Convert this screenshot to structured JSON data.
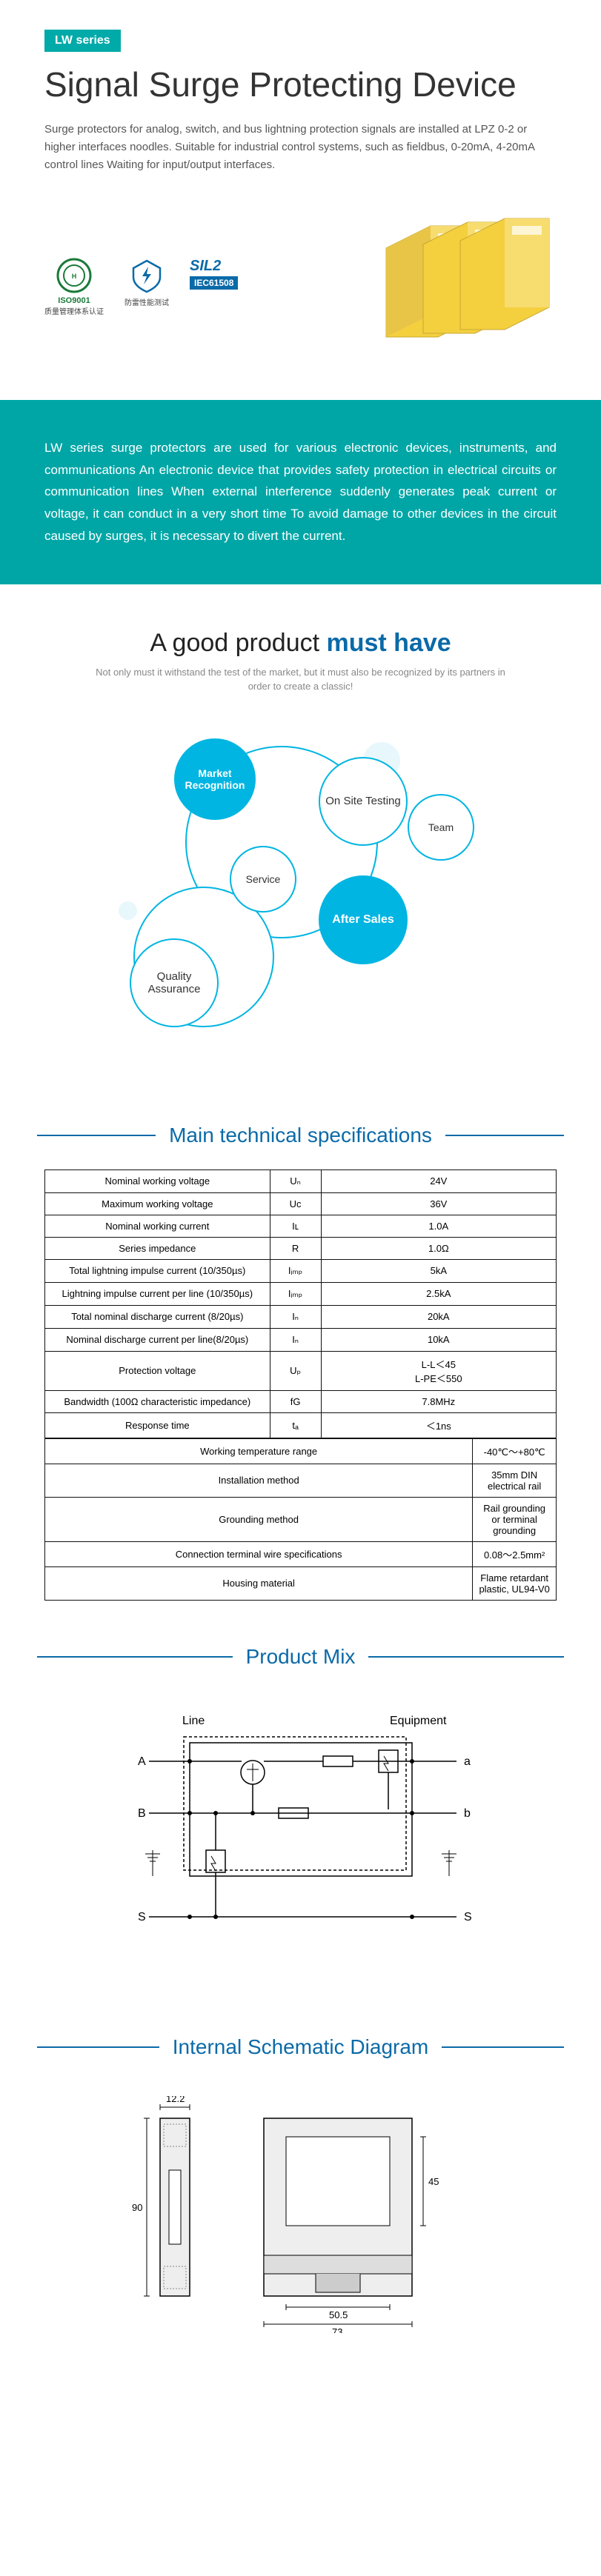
{
  "colors": {
    "teal": "#00a6a6",
    "blue": "#0b6aa8",
    "cyan": "#00b5e2",
    "lightCyan": "#e8f7fb",
    "yellow": "#f4d03f"
  },
  "hero": {
    "badge": "LW series",
    "title": "Signal Surge Protecting Device",
    "desc": "Surge protectors for analog, switch, and bus lightning protection signals are installed at LPZ 0-2 or higher interfaces noodles. Suitable for industrial control systems, such as fieldbus, 0-20mA, 4-20mA control lines Waiting for input/output interfaces.",
    "cert1": "质量管理体系认证",
    "cert1Top": "ISO9001",
    "cert2": "防雷性能测试",
    "silTop": "SIL2",
    "silBot": "IEC61508"
  },
  "tealBlock": "LW series surge protectors are used for various electronic devices, instruments, and communications An electronic device that provides safety protection in electrical circuits or communication lines When external interference suddenly generates peak current or voltage, it can conduct in a very short time To avoid damage to other devices in the circuit caused by surges, it is necessary to divert the current.",
  "good": {
    "titleA": "A good product ",
    "titleB": "must have",
    "sub": "Not only must it withstand the test of the market, but it must also be recognized by its partners in order to create a classic!",
    "bubbles": {
      "market": "Market Recognition",
      "onsite": "On Site Testing",
      "team": "Team",
      "service": "Service",
      "after": "After Sales",
      "quality": "Quality Assurance"
    }
  },
  "specsTitle": "Main technical specifications",
  "specs": [
    [
      "Nominal working voltage",
      "Uₙ",
      "24V"
    ],
    [
      "Maximum working voltage",
      "Uᴄ",
      "36V"
    ],
    [
      "Nominal working current",
      "Iʟ",
      "1.0A"
    ],
    [
      "Series impedance",
      "R",
      "1.0Ω"
    ],
    [
      "Total lightning impulse current (10/350µs)",
      "Iᵢₘₚ",
      "5kA"
    ],
    [
      "Lightning impulse current per line (10/350µs)",
      "Iᵢₘₚ",
      "2.5kA"
    ],
    [
      "Total nominal discharge current (8/20µs)",
      "Iₙ",
      "20kA"
    ],
    [
      "Nominal discharge current per line(8/20µs)",
      "Iₙ",
      "10kA"
    ],
    [
      "Protection voltage",
      "Uₚ",
      "L-L＜45\nL-PE＜550"
    ],
    [
      "Bandwidth (100Ω characteristic impedance)",
      "fG",
      "7.8MHz"
    ],
    [
      "Response time",
      "tₐ",
      "＜1ns"
    ]
  ],
  "specs2": [
    [
      "Working temperature range",
      "-40℃～+80℃"
    ],
    [
      "Installation method",
      "35mm DIN electrical rail"
    ],
    [
      "Grounding method",
      "Rail grounding or terminal grounding"
    ],
    [
      "Connection terminal wire specifications",
      "0.08～2.5mm²"
    ],
    [
      "Housing material",
      "Flame retardant plastic, UL94-V0"
    ]
  ],
  "mixTitle": "Product Mix",
  "mix": {
    "line": "Line",
    "equip": "Equipment",
    "A": "A",
    "B": "B",
    "S": "S",
    "a": "a",
    "b": "b"
  },
  "schemTitle": "Internal Schematic Diagram",
  "dims": {
    "w1": "12.2",
    "h1": "90",
    "h2": "45",
    "w2": "50.5",
    "w3": "73"
  }
}
